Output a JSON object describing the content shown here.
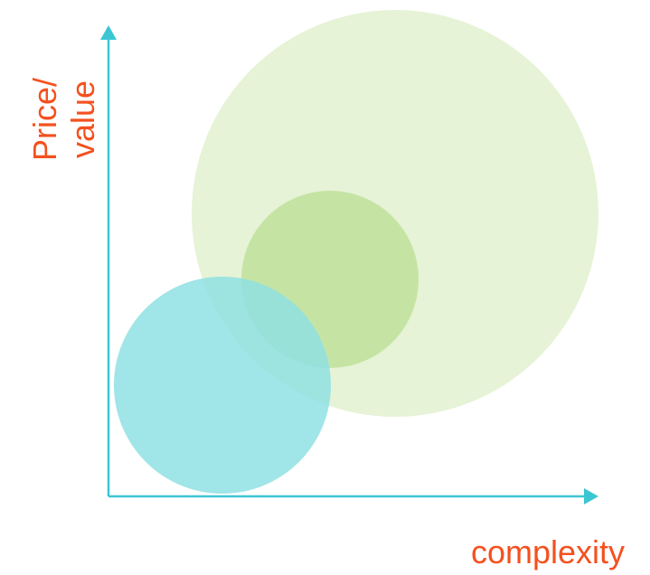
{
  "diagram": {
    "y_axis_label_line1": "Price/",
    "y_axis_label_line2": "value",
    "x_axis_label": "complexity",
    "colors": {
      "axis": "#3cc6d3",
      "label": "#f4511e",
      "large_circle": "#d9ecc0",
      "medium_circle": "#b6dd8f",
      "small_circle": "#8fe0e3"
    }
  }
}
